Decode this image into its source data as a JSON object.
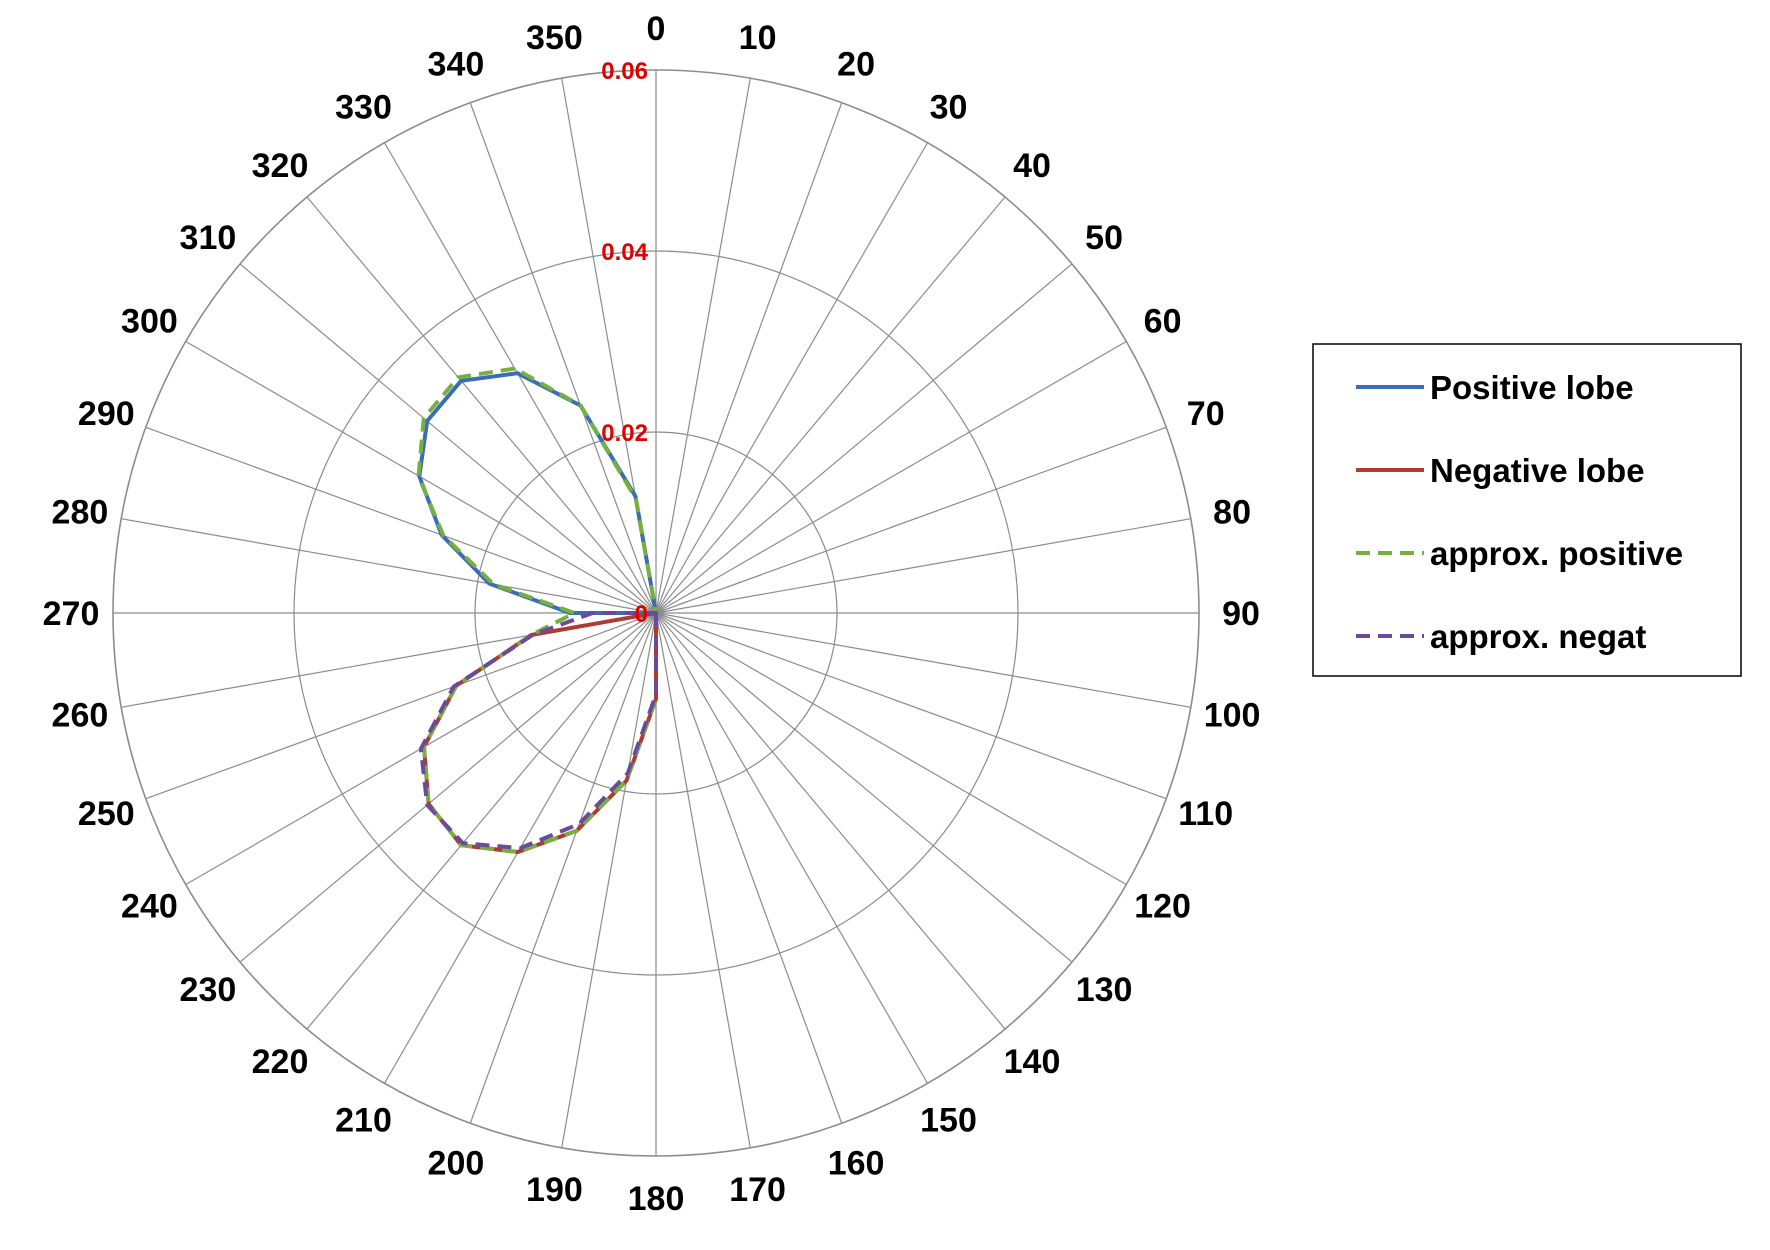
{
  "chart_data": {
    "type": "radar",
    "theta_unit": "degrees",
    "theta": [
      0,
      10,
      20,
      30,
      40,
      50,
      60,
      70,
      80,
      90,
      100,
      110,
      120,
      130,
      140,
      150,
      160,
      170,
      180,
      190,
      200,
      210,
      220,
      230,
      240,
      250,
      260,
      270,
      280,
      290,
      300,
      310,
      320,
      330,
      340,
      350
    ],
    "angle_labels": [
      "0",
      "10",
      "20",
      "30",
      "40",
      "50",
      "60",
      "70",
      "80",
      "90",
      "100",
      "110",
      "120",
      "130",
      "140",
      "150",
      "160",
      "170",
      "180",
      "190",
      "200",
      "210",
      "220",
      "230",
      "240",
      "250",
      "260",
      "270",
      "280",
      "290",
      "300",
      "310",
      "320",
      "330",
      "340",
      "350"
    ],
    "radial_ticks": [
      0,
      0.02,
      0.04,
      0.06
    ],
    "radial_tick_labels": [
      "0",
      "0.02",
      "0.04",
      "0.06"
    ],
    "rlim": [
      0,
      0.06
    ],
    "radial_label_color": "#e00000",
    "grid": true,
    "legend_position": "right",
    "series": [
      {
        "name": "Positive lobe",
        "style": "solid",
        "color": "#3a6db4",
        "values": [
          0,
          0,
          0,
          0,
          0,
          0,
          0,
          0,
          0,
          0,
          0,
          0,
          0,
          0,
          0,
          0,
          0,
          0,
          0,
          0,
          0,
          0,
          0,
          0,
          0,
          0,
          0,
          0.0095,
          0.0187,
          0.0252,
          0.0302,
          0.033,
          0.0335,
          0.0306,
          0.0244,
          0.0131
        ]
      },
      {
        "name": "Negative lobe",
        "style": "solid",
        "color": "#b03a32",
        "values": [
          0,
          0,
          0,
          0,
          0,
          0,
          0,
          0,
          0,
          0,
          0,
          0,
          0,
          0,
          0,
          0,
          0,
          0,
          0.0095,
          0.0188,
          0.0256,
          0.0305,
          0.0335,
          0.0328,
          0.0296,
          0.0235,
          0.014,
          0,
          0,
          0,
          0,
          0,
          0,
          0,
          0,
          0
        ]
      },
      {
        "name": "approx. positive",
        "style": "dashed",
        "color": "#77b041",
        "values": [
          0,
          0,
          0,
          0,
          0,
          0,
          0,
          0,
          0,
          0,
          0,
          0,
          0,
          0,
          0,
          0,
          0,
          0,
          0.0095,
          0.0188,
          0.0256,
          0.0305,
          0.0335,
          0.0328,
          0.0296,
          0.0235,
          0.014,
          0.009,
          0.0182,
          0.025,
          0.0303,
          0.0335,
          0.034,
          0.0312,
          0.0244,
          0.0128
        ]
      },
      {
        "name": "approx. negat",
        "style": "dashed",
        "color": "#6a4a9c",
        "values": [
          0,
          0,
          0,
          0,
          0,
          0,
          0,
          0,
          0,
          0,
          0,
          0,
          0,
          0,
          0,
          0,
          0,
          0,
          0.009,
          0.018,
          0.0248,
          0.03,
          0.0332,
          0.033,
          0.03,
          0.0238,
          0.0138,
          0.007,
          0,
          0,
          0,
          0,
          0,
          0,
          0,
          0
        ]
      }
    ]
  }
}
